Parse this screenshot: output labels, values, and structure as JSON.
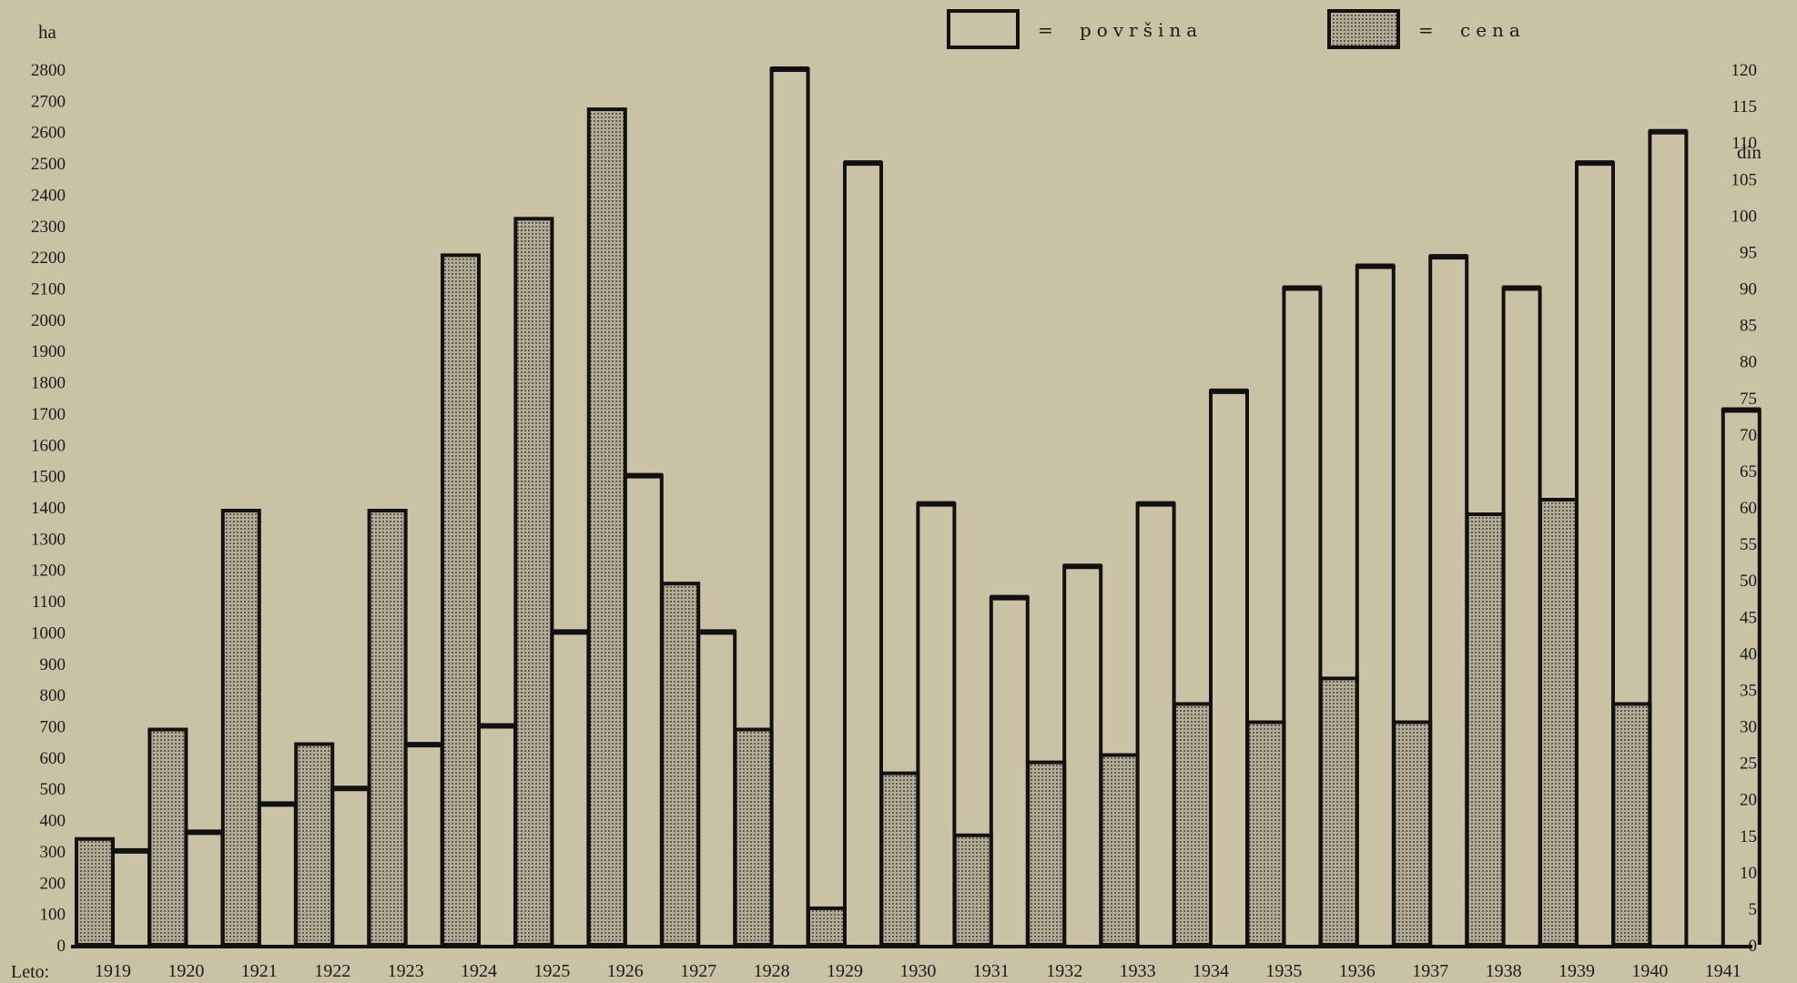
{
  "chart_data": {
    "type": "bar",
    "x_axis_label": "Leto:",
    "left_unit": "ha",
    "right_unit": "din",
    "categories": [
      "1919",
      "1920",
      "1921",
      "1922",
      "1923",
      "1924",
      "1925",
      "1926",
      "1927",
      "1928",
      "1929",
      "1930",
      "1931",
      "1932",
      "1933",
      "1934",
      "1935",
      "1936",
      "1937",
      "1938",
      "1939",
      "1940",
      "1941"
    ],
    "series": [
      {
        "name": "cena",
        "axis": "right",
        "legend_symbol": "=",
        "color": "#9e9886",
        "values": [
          14.5,
          29.5,
          59.5,
          27.5,
          59.5,
          94.5,
          99.5,
          114.5,
          49.5,
          29.5,
          5,
          23.5,
          15,
          25,
          26,
          33,
          30.5,
          36.5,
          30.5,
          59,
          61,
          33,
          0
        ]
      },
      {
        "name": "površina",
        "axis": "left",
        "legend_symbol": "=",
        "color": "#c9c2a4",
        "values": [
          300,
          360,
          450,
          500,
          640,
          700,
          1000,
          1500,
          1000,
          2800,
          2500,
          1410,
          1110,
          1210,
          1410,
          1770,
          2100,
          2170,
          2200,
          2100,
          2500,
          2600,
          1710
        ]
      }
    ],
    "left_axis": {
      "min": 0,
      "max": 2800,
      "step": 100
    },
    "right_axis": {
      "min": 0,
      "max": 120,
      "step": 5
    },
    "grid": false,
    "legend_position": "top-center"
  }
}
